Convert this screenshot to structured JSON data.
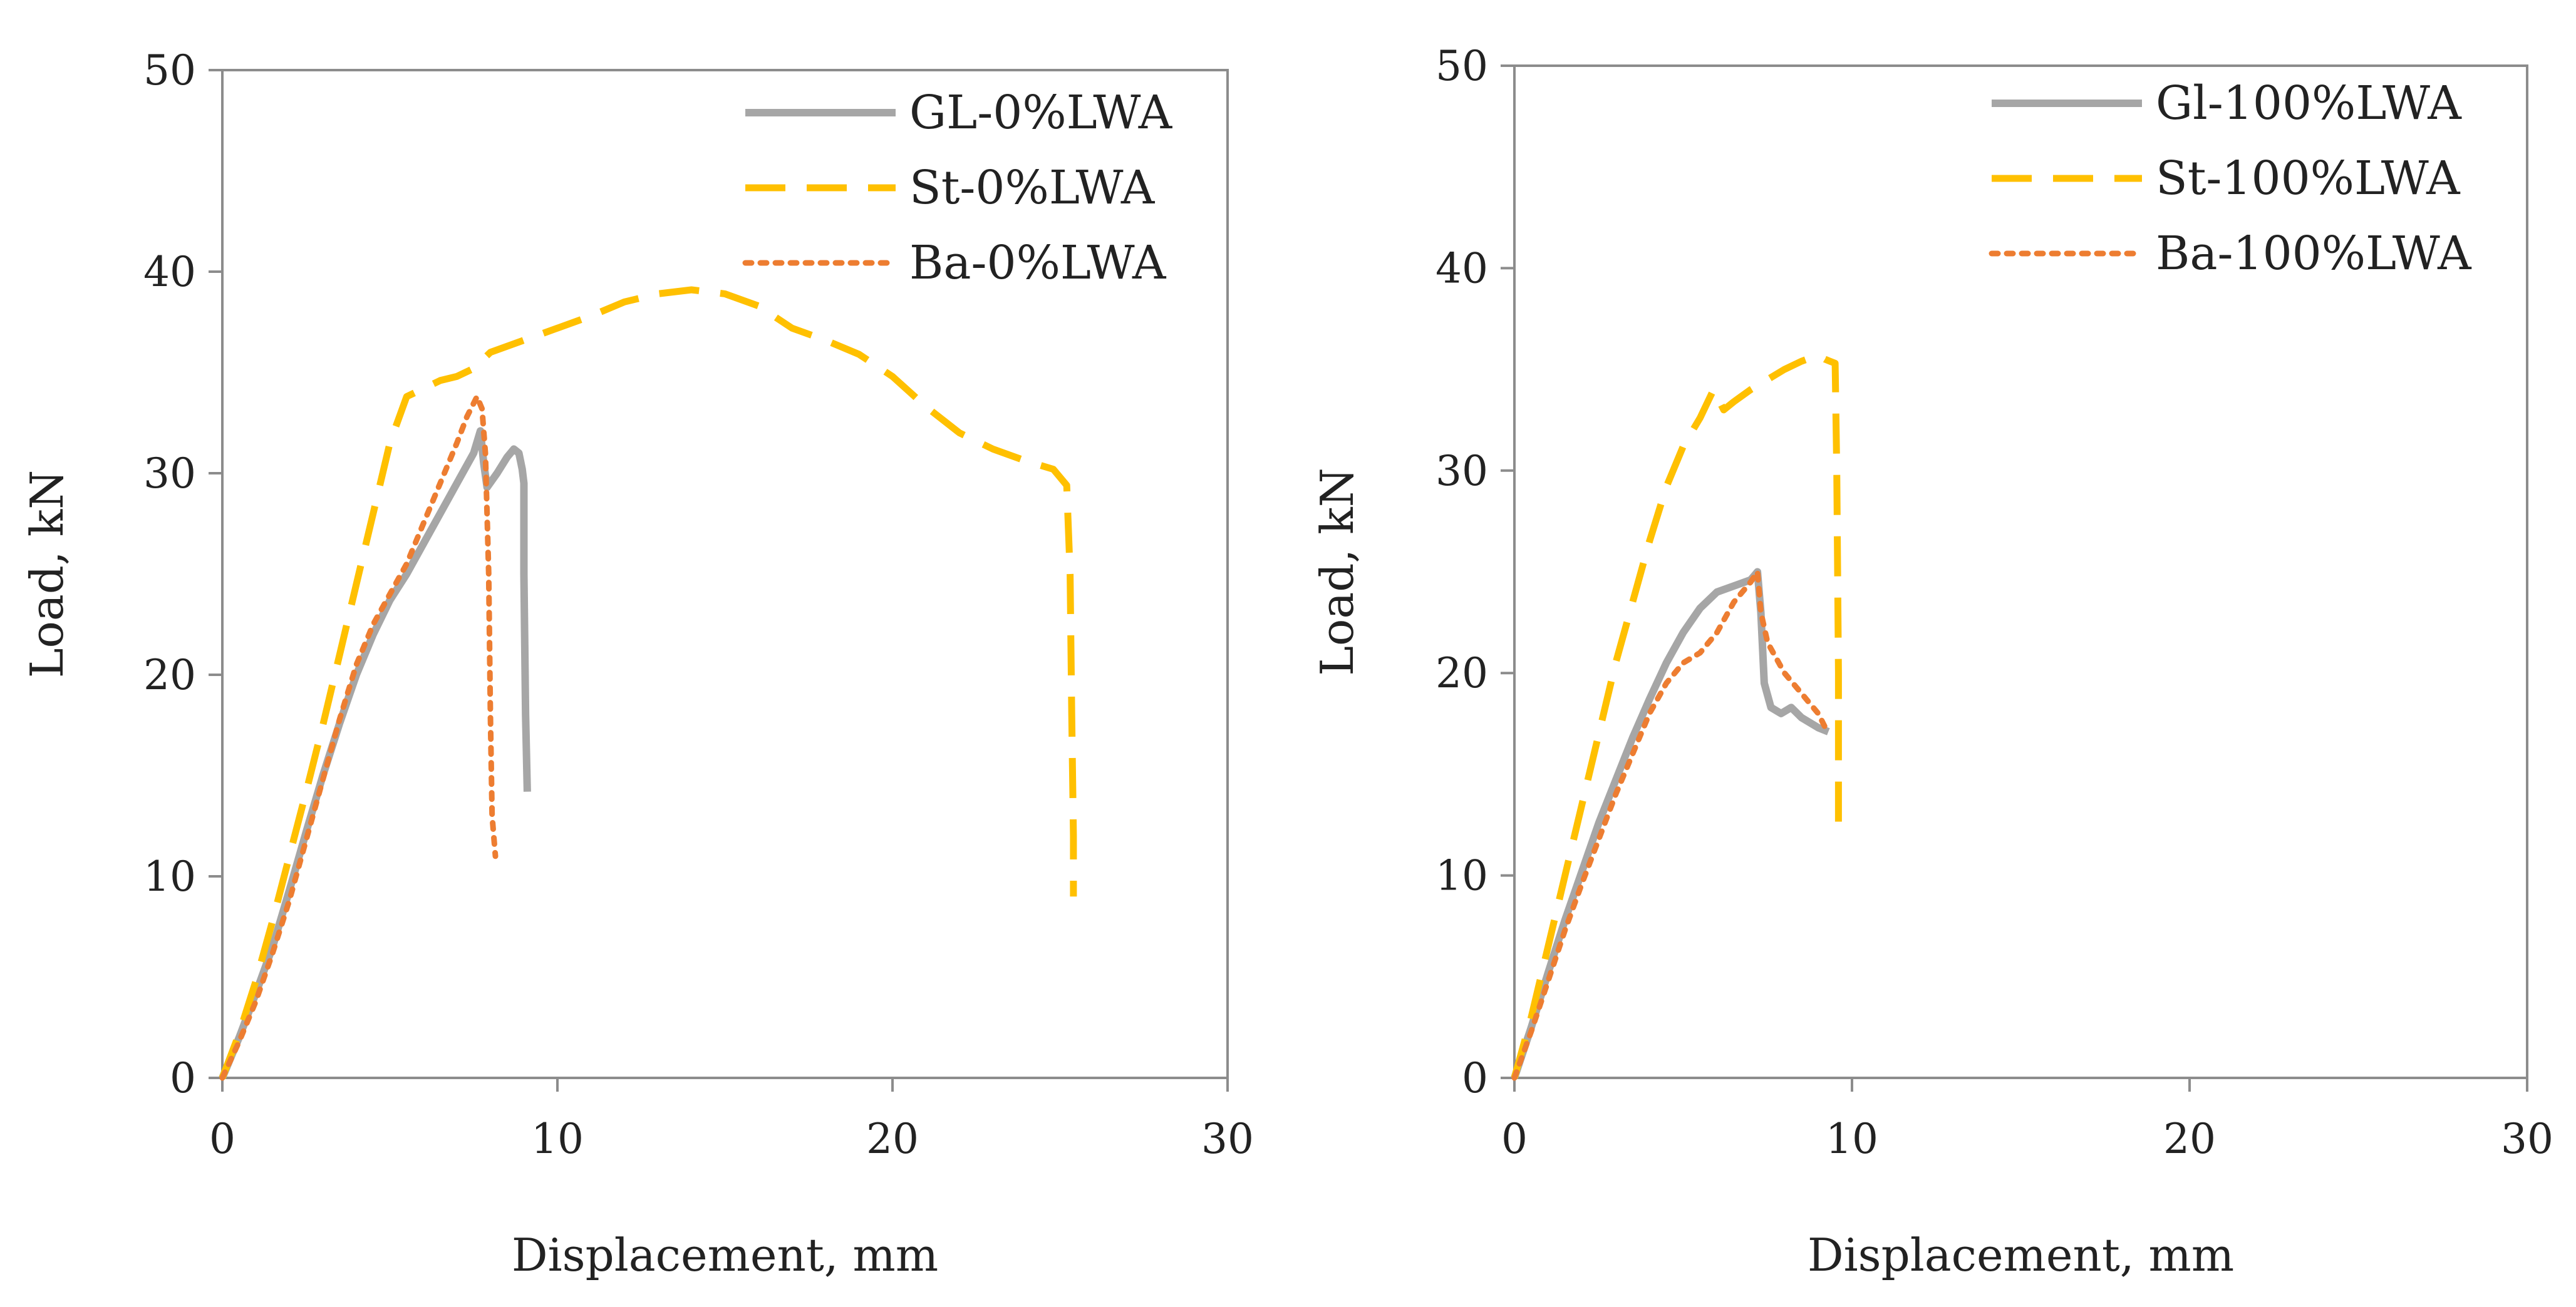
{
  "chart_data": [
    {
      "type": "line",
      "xlabel": "Displacement, mm",
      "ylabel": "Load, kN",
      "xlim": [
        0,
        30
      ],
      "ylim": [
        0,
        50
      ],
      "xticks": [
        "0",
        "10",
        "20",
        "30"
      ],
      "yticks": [
        "0",
        "10",
        "20",
        "30",
        "40",
        "50"
      ],
      "grid": false,
      "legend": "top-right",
      "series": [
        {
          "name": "GL-0%LWA",
          "color": "#a6a6a6",
          "style": "solid",
          "points": [
            [
              0,
              0
            ],
            [
              0.5,
              2
            ],
            [
              1,
              4.2
            ],
            [
              1.5,
              6.5
            ],
            [
              2,
              9.3
            ],
            [
              2.5,
              12.2
            ],
            [
              3,
              15
            ],
            [
              3.5,
              17.6
            ],
            [
              4,
              20
            ],
            [
              4.5,
              22
            ],
            [
              5,
              23.7
            ],
            [
              5.5,
              25
            ],
            [
              6,
              26.5
            ],
            [
              6.5,
              28
            ],
            [
              7,
              29.5
            ],
            [
              7.5,
              31
            ],
            [
              7.7,
              32.1
            ],
            [
              7.8,
              30.5
            ],
            [
              7.9,
              29.3
            ],
            [
              8.2,
              30
            ],
            [
              8.5,
              30.8
            ],
            [
              8.7,
              31.2
            ],
            [
              8.85,
              31
            ],
            [
              8.95,
              30.2
            ],
            [
              9.0,
              29.5
            ],
            [
              9.0,
              25
            ],
            [
              9.05,
              18
            ],
            [
              9.1,
              14.2
            ]
          ]
        },
        {
          "name": "St-0%LWA",
          "color": "#ffc000",
          "style": "dashed",
          "points": [
            [
              0,
              0
            ],
            [
              0.5,
              2.2
            ],
            [
              1,
              4.8
            ],
            [
              1.5,
              7.8
            ],
            [
              2,
              11
            ],
            [
              2.5,
              14.2
            ],
            [
              3,
              17.5
            ],
            [
              3.5,
              21
            ],
            [
              4,
              24.5
            ],
            [
              4.5,
              28
            ],
            [
              5,
              31.5
            ],
            [
              5.5,
              33.8
            ],
            [
              6,
              34.2
            ],
            [
              6.5,
              34.6
            ],
            [
              7,
              34.8
            ],
            [
              7.5,
              35.2
            ],
            [
              8,
              36
            ],
            [
              9,
              36.6
            ],
            [
              10,
              37.2
            ],
            [
              11,
              37.8
            ],
            [
              12,
              38.5
            ],
            [
              13,
              38.9
            ],
            [
              14,
              39.1
            ],
            [
              15,
              38.9
            ],
            [
              16,
              38.3
            ],
            [
              17,
              37.2
            ],
            [
              18,
              36.6
            ],
            [
              19,
              35.9
            ],
            [
              20,
              34.8
            ],
            [
              21,
              33.3
            ],
            [
              22,
              32
            ],
            [
              23,
              31.2
            ],
            [
              24,
              30.6
            ],
            [
              24.8,
              30.2
            ],
            [
              25.2,
              29.4
            ],
            [
              25.3,
              25
            ],
            [
              25.35,
              18
            ],
            [
              25.4,
              12
            ],
            [
              25.4,
              9
            ]
          ]
        },
        {
          "name": "Ba-0%LWA",
          "color": "#ed7d31",
          "style": "dotted",
          "points": [
            [
              0,
              0
            ],
            [
              0.5,
              1.8
            ],
            [
              1,
              3.8
            ],
            [
              1.5,
              6.2
            ],
            [
              2,
              8.8
            ],
            [
              2.5,
              11.8
            ],
            [
              3,
              14.8
            ],
            [
              3.5,
              17.8
            ],
            [
              4,
              20.5
            ],
            [
              4.5,
              22.5
            ],
            [
              5,
              24
            ],
            [
              5.5,
              25.5
            ],
            [
              6,
              27.5
            ],
            [
              6.5,
              29.5
            ],
            [
              7,
              31.5
            ],
            [
              7.3,
              32.8
            ],
            [
              7.6,
              33.8
            ],
            [
              7.75,
              33.2
            ],
            [
              7.85,
              31
            ],
            [
              7.95,
              25
            ],
            [
              8.0,
              18
            ],
            [
              8.05,
              13
            ],
            [
              8.15,
              11
            ]
          ]
        }
      ]
    },
    {
      "type": "line",
      "xlabel": "Displacement, mm",
      "ylabel": "Load, kN",
      "xlim": [
        0,
        30
      ],
      "ylim": [
        0,
        50
      ],
      "xticks": [
        "0",
        "10",
        "20",
        "30"
      ],
      "yticks": [
        "0",
        "10",
        "20",
        "30",
        "40",
        "50"
      ],
      "grid": false,
      "legend": "top-right",
      "series": [
        {
          "name": "Gl-100%LWA",
          "color": "#a6a6a6",
          "style": "solid",
          "points": [
            [
              0,
              0
            ],
            [
              0.5,
              2.5
            ],
            [
              1,
              5.2
            ],
            [
              1.5,
              7.8
            ],
            [
              2,
              10.2
            ],
            [
              2.5,
              12.6
            ],
            [
              3,
              14.7
            ],
            [
              3.5,
              16.8
            ],
            [
              4,
              18.7
            ],
            [
              4.5,
              20.5
            ],
            [
              5,
              22
            ],
            [
              5.5,
              23.2
            ],
            [
              6,
              24
            ],
            [
              6.5,
              24.3
            ],
            [
              7,
              24.6
            ],
            [
              7.2,
              25
            ],
            [
              7.3,
              23
            ],
            [
              7.4,
              19.5
            ],
            [
              7.6,
              18.3
            ],
            [
              7.9,
              18
            ],
            [
              8.2,
              18.3
            ],
            [
              8.5,
              17.8
            ],
            [
              9,
              17.3
            ],
            [
              9.3,
              17.1
            ]
          ]
        },
        {
          "name": "St-100%LWA",
          "color": "#ffc000",
          "style": "dashed",
          "points": [
            [
              0,
              0
            ],
            [
              0.5,
              3
            ],
            [
              1,
              6.5
            ],
            [
              1.5,
              10
            ],
            [
              2,
              13.5
            ],
            [
              2.5,
              17
            ],
            [
              3,
              20.5
            ],
            [
              3.5,
              23.5
            ],
            [
              4,
              26.5
            ],
            [
              4.5,
              29.2
            ],
            [
              5,
              31.2
            ],
            [
              5.5,
              32.6
            ],
            [
              5.9,
              34
            ],
            [
              6.2,
              33
            ],
            [
              6.5,
              33.4
            ],
            [
              7,
              34
            ],
            [
              7.5,
              34.5
            ],
            [
              8,
              35
            ],
            [
              8.5,
              35.4
            ],
            [
              9,
              35.7
            ],
            [
              9.2,
              35.5
            ],
            [
              9.5,
              35.3
            ],
            [
              9.55,
              30
            ],
            [
              9.6,
              20
            ],
            [
              9.6,
              12.5
            ]
          ]
        },
        {
          "name": "Ba-100%LWA",
          "color": "#ed7d31",
          "style": "dotted",
          "points": [
            [
              0,
              0
            ],
            [
              0.5,
              2.3
            ],
            [
              1,
              4.8
            ],
            [
              1.5,
              7.3
            ],
            [
              2,
              9.6
            ],
            [
              2.5,
              11.8
            ],
            [
              3,
              14
            ],
            [
              3.5,
              16
            ],
            [
              4,
              18
            ],
            [
              4.5,
              19.5
            ],
            [
              5,
              20.5
            ],
            [
              5.5,
              21
            ],
            [
              6,
              22
            ],
            [
              6.5,
              23.5
            ],
            [
              7,
              24.5
            ],
            [
              7.2,
              25
            ],
            [
              7.3,
              23
            ],
            [
              7.5,
              21.5
            ],
            [
              8,
              20
            ],
            [
              8.5,
              19
            ],
            [
              9,
              18
            ],
            [
              9.3,
              17
            ]
          ]
        }
      ]
    }
  ]
}
